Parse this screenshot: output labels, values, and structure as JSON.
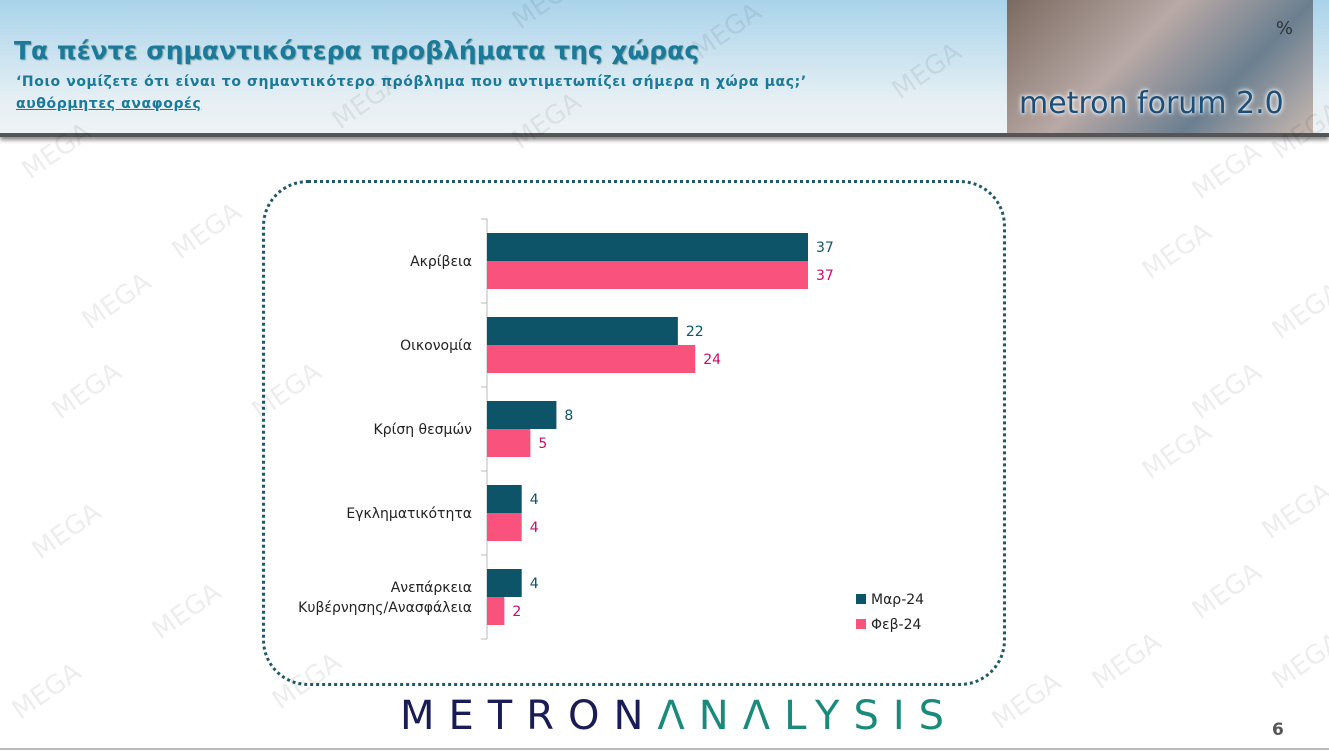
{
  "header": {
    "title": "Τα πέντε σημαντικότερα προβλήματα της χώρας",
    "subtitle": "‘Ποιο νομίζετε ότι είναι το σημαντικότερο πρόβλημα που αντιμετωπίζει σήμερα η χώρα μας;’",
    "note": "αυθόρμητες αναφορές",
    "logo_text": "metron forum 2.0",
    "logo_symbol": "%"
  },
  "chart_data": {
    "type": "bar",
    "orientation": "horizontal",
    "categories": [
      "Ακρίβεια",
      "Οικονομία",
      "Κρίση θεσμών",
      "Εγκληματικότητα",
      "Ανεπάρκεια Κυβέρνησης/Ανασφάλεια"
    ],
    "series": [
      {
        "name": "Μαρ-24",
        "color": "#0e5468",
        "values": [
          37,
          22,
          8,
          4,
          4
        ]
      },
      {
        "name": "Φεβ-24",
        "color": "#f9527d",
        "values": [
          37,
          24,
          5,
          4,
          2
        ]
      }
    ],
    "label_colors": [
      "#0e5468",
      "#c0106a"
    ],
    "legend": "bottom-right",
    "grid": false
  },
  "footer": {
    "brand_part1": "METRON",
    "brand_part2": "ΛNΛLYSIS",
    "page_number": "6"
  },
  "watermark": "MEGA"
}
